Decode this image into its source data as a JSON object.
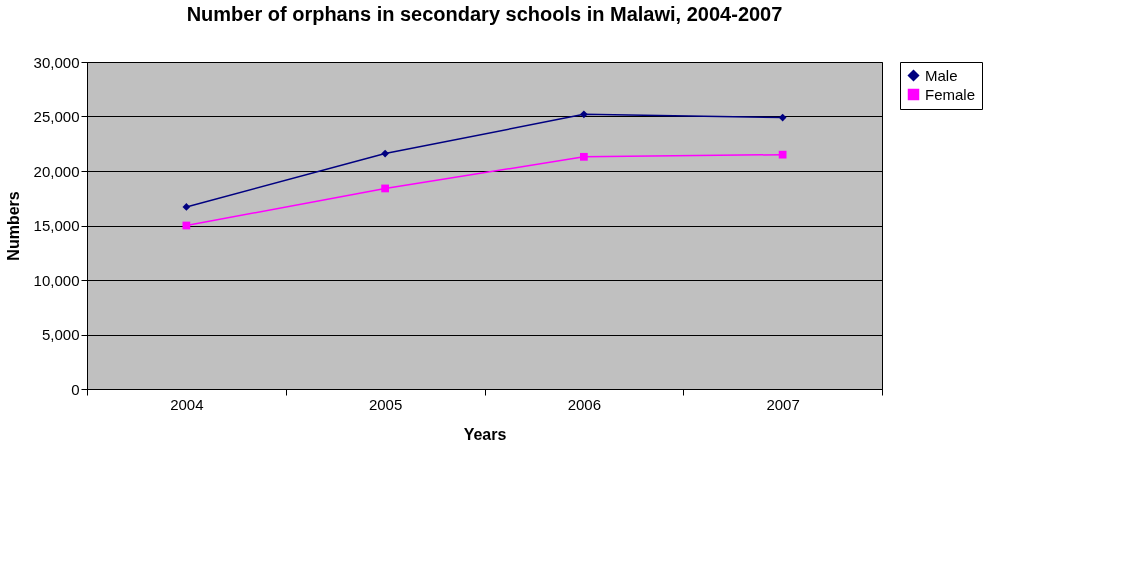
{
  "chart_data": {
    "type": "line",
    "title": "Number of orphans in secondary schools in Malawi, 2004-2007",
    "xlabel": "Years",
    "ylabel": "Numbers",
    "categories": [
      "2004",
      "2005",
      "2006",
      "2007"
    ],
    "series": [
      {
        "name": "Male",
        "color": "#000080",
        "marker": "diamond",
        "values": [
          16700,
          21600,
          25200,
          24900
        ]
      },
      {
        "name": "Female",
        "color": "#ff00ff",
        "marker": "square",
        "values": [
          15000,
          18400,
          21300,
          21500
        ]
      }
    ],
    "ylim": [
      0,
      30000
    ],
    "yticks": [
      0,
      {
        "value": 5000,
        "label": "5,000"
      },
      {
        "value": 10000,
        "label": "10,000"
      },
      {
        "value": 15000,
        "label": "15,000"
      },
      {
        "value": 20000,
        "label": "20,000"
      },
      {
        "value": 25000,
        "label": "25,000"
      },
      {
        "value": 30000,
        "label": "30,000"
      }
    ],
    "grid": "y",
    "legend": "right",
    "line_style": "solid"
  }
}
